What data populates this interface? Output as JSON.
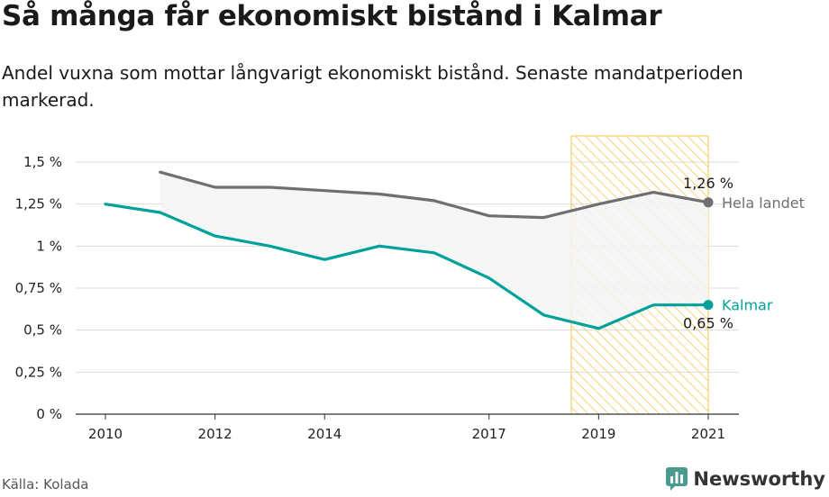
{
  "title": "Så många får ekonomiskt bistånd i Kalmar",
  "subtitle": "Andel vuxna som mottar långvarigt ekonomiskt bistånd. Senaste mandatperioden markerad.",
  "source": "Källa: Kolada",
  "brand": "Newsworthy",
  "colors": {
    "kalmar": "#00a19a",
    "hela_landet": "#6f6e73",
    "highlight": "#f5cf6b",
    "area": "#f4f4f4",
    "grid": "#dddddd"
  },
  "chart_data": {
    "type": "line",
    "x_ticks": [
      2010,
      2012,
      2014,
      2017,
      2019,
      2021
    ],
    "y_ticks": [
      {
        "value": 0,
        "label": "0 %"
      },
      {
        "value": 0.25,
        "label": "0,25 %"
      },
      {
        "value": 0.5,
        "label": "0,5 %"
      },
      {
        "value": 0.75,
        "label": "0,75 %"
      },
      {
        "value": 1.0,
        "label": "1 %"
      },
      {
        "value": 1.25,
        "label": "1,25 %"
      },
      {
        "value": 1.5,
        "label": "1,5 %"
      }
    ],
    "xlim": [
      2010,
      2021
    ],
    "ylim": [
      0,
      1.5
    ],
    "highlight_period": [
      2018.5,
      2021
    ],
    "series": [
      {
        "name": "Hela landet",
        "color": "#6f6e73",
        "end_label": "1,26 %",
        "points": [
          [
            2011,
            1.44
          ],
          [
            2012,
            1.35
          ],
          [
            2013,
            1.35
          ],
          [
            2014,
            1.33
          ],
          [
            2015,
            1.31
          ],
          [
            2016,
            1.27
          ],
          [
            2017,
            1.18
          ],
          [
            2018,
            1.17
          ],
          [
            2019,
            1.25
          ],
          [
            2020,
            1.32
          ],
          [
            2021,
            1.26
          ]
        ]
      },
      {
        "name": "Kalmar",
        "color": "#00a19a",
        "end_label": "0,65 %",
        "points": [
          [
            2010,
            1.25
          ],
          [
            2011,
            1.2
          ],
          [
            2012,
            1.06
          ],
          [
            2013,
            1.0
          ],
          [
            2014,
            0.92
          ],
          [
            2015,
            1.0
          ],
          [
            2016,
            0.96
          ],
          [
            2017,
            0.81
          ],
          [
            2018,
            0.59
          ],
          [
            2019,
            0.51
          ],
          [
            2020,
            0.65
          ],
          [
            2021,
            0.65
          ]
        ]
      }
    ]
  }
}
